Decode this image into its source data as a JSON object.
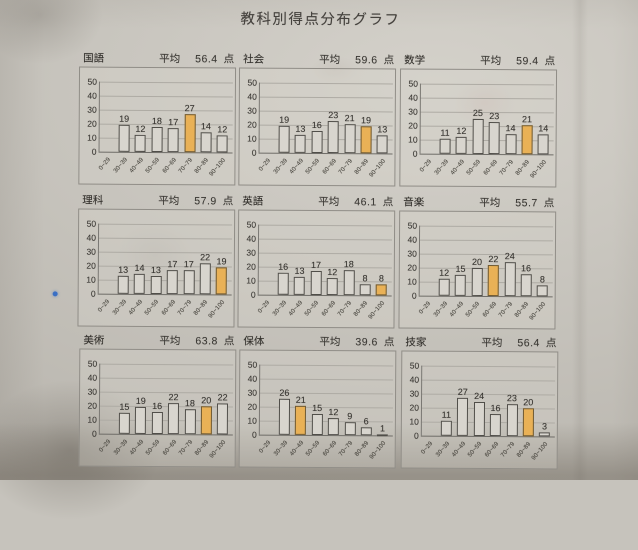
{
  "page_title": "教科別得点分布グラフ",
  "labels": {
    "mean": "平均",
    "unit": "点"
  },
  "colors": {
    "paper": "#c6c3bc",
    "bar_fill": "#d8d5ce",
    "bar_border": "#504e49",
    "highlight_fill": "#e9b156",
    "grid": "#aeaba4",
    "text": "#3c3a36",
    "stray_dot_blue": "#3a6fc4"
  },
  "chart_data": [
    {
      "type": "bar",
      "title": "国語",
      "mean": "56.4",
      "categories": [
        "0~29",
        "30~39",
        "40~49",
        "50~59",
        "60~69",
        "70~79",
        "80~89",
        "90~100"
      ],
      "values": [
        0,
        19,
        12,
        18,
        17,
        27,
        14,
        12
      ],
      "highlight_index": 5,
      "ylim": [
        0,
        50
      ],
      "yticks": [
        0,
        10,
        20,
        30,
        40,
        50
      ],
      "grid": true,
      "legend": "none"
    },
    {
      "type": "bar",
      "title": "社会",
      "mean": "59.6",
      "categories": [
        "0~29",
        "30~39",
        "40~49",
        "50~59",
        "60~69",
        "70~79",
        "80~89",
        "90~100"
      ],
      "values": [
        0,
        19,
        13,
        16,
        23,
        21,
        19,
        13
      ],
      "highlight_index": 6,
      "ylim": [
        0,
        50
      ],
      "yticks": [
        0,
        10,
        20,
        30,
        40,
        50
      ],
      "grid": true,
      "legend": "none"
    },
    {
      "type": "bar",
      "title": "数学",
      "mean": "59.4",
      "categories": [
        "0~29",
        "30~39",
        "40~49",
        "50~59",
        "60~69",
        "70~79",
        "80~89",
        "90~100"
      ],
      "values": [
        0,
        11,
        12,
        25,
        23,
        14,
        21,
        14
      ],
      "highlight_index": 6,
      "ylim": [
        0,
        50
      ],
      "yticks": [
        0,
        10,
        20,
        30,
        40,
        50
      ],
      "grid": true,
      "legend": "none"
    },
    {
      "type": "bar",
      "title": "理科",
      "mean": "57.9",
      "categories": [
        "0~29",
        "30~39",
        "40~49",
        "50~59",
        "60~69",
        "70~79",
        "80~89",
        "90~100"
      ],
      "values": [
        0,
        13,
        14,
        13,
        17,
        17,
        22,
        19
      ],
      "highlight_index": 7,
      "ylim": [
        0,
        50
      ],
      "yticks": [
        0,
        10,
        20,
        30,
        40,
        50
      ],
      "grid": true,
      "legend": "none"
    },
    {
      "type": "bar",
      "title": "英語",
      "mean": "46.1",
      "categories": [
        "0~29",
        "30~39",
        "40~49",
        "50~59",
        "60~69",
        "70~79",
        "80~89",
        "90~100"
      ],
      "values": [
        0,
        16,
        13,
        17,
        12,
        18,
        8,
        8
      ],
      "highlight_index": 7,
      "ylim": [
        0,
        50
      ],
      "yticks": [
        0,
        10,
        20,
        30,
        40,
        50
      ],
      "grid": true,
      "legend": "none"
    },
    {
      "type": "bar",
      "title": "音楽",
      "mean": "55.7",
      "categories": [
        "0~29",
        "30~39",
        "40~49",
        "50~59",
        "60~69",
        "70~79",
        "80~89",
        "90~100"
      ],
      "values": [
        0,
        12,
        15,
        20,
        22,
        24,
        16,
        8
      ],
      "highlight_index": 4,
      "ylim": [
        0,
        50
      ],
      "yticks": [
        0,
        10,
        20,
        30,
        40,
        50
      ],
      "grid": true,
      "legend": "none"
    },
    {
      "type": "bar",
      "title": "美術",
      "mean": "63.8",
      "categories": [
        "0~29",
        "30~39",
        "40~49",
        "50~59",
        "60~69",
        "70~79",
        "80~89",
        "90~100"
      ],
      "values": [
        0,
        15,
        19,
        16,
        22,
        18,
        20,
        22
      ],
      "highlight_index": 6,
      "ylim": [
        0,
        50
      ],
      "yticks": [
        0,
        10,
        20,
        30,
        40,
        50
      ],
      "grid": true,
      "legend": "none"
    },
    {
      "type": "bar",
      "title": "保体",
      "mean": "39.6",
      "categories": [
        "0~29",
        "30~39",
        "40~49",
        "50~59",
        "60~69",
        "70~79",
        "80~89",
        "90~100"
      ],
      "values": [
        0,
        26,
        21,
        15,
        12,
        9,
        6,
        1
      ],
      "highlight_index": 2,
      "ylim": [
        0,
        50
      ],
      "yticks": [
        0,
        10,
        20,
        30,
        40,
        50
      ],
      "grid": true,
      "legend": "none"
    },
    {
      "type": "bar",
      "title": "技家",
      "mean": "56.4",
      "categories": [
        "0~29",
        "30~39",
        "40~49",
        "50~59",
        "60~69",
        "70~79",
        "80~89",
        "90~100"
      ],
      "values": [
        0,
        11,
        27,
        24,
        16,
        23,
        20,
        3
      ],
      "highlight_index": 6,
      "ylim": [
        0,
        50
      ],
      "yticks": [
        0,
        10,
        20,
        30,
        40,
        50
      ],
      "grid": true,
      "legend": "none"
    }
  ]
}
